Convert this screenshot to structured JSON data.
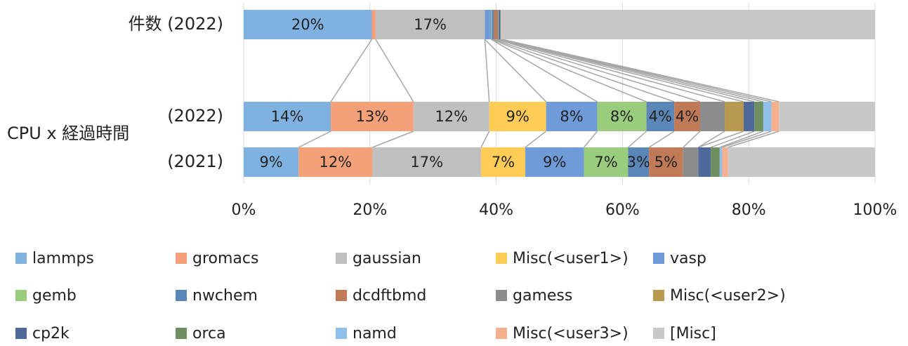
{
  "chart_data": {
    "type": "stacked_bar_horizontal",
    "categories": [
      "件数 (2022)",
      "(2022)",
      "(2021)"
    ],
    "group_label": "CPU x 経過時間",
    "xlim": [
      0,
      100
    ],
    "xticks": [
      {
        "value": 0,
        "label": "0%"
      },
      {
        "value": 20,
        "label": "20%"
      },
      {
        "value": 40,
        "label": "40%"
      },
      {
        "value": 60,
        "label": "60%"
      },
      {
        "value": 80,
        "label": "80%"
      },
      {
        "value": 100,
        "label": "100%"
      }
    ],
    "grid": true,
    "legend": "bottom",
    "series": [
      {
        "name": "lammps",
        "color": "#7fb2e0",
        "values": [
          20.3,
          13.8,
          8.7
        ],
        "value_labels": [
          "20%",
          "14%",
          "9%"
        ]
      },
      {
        "name": "gromacs",
        "color": "#f4a078",
        "values": [
          0.6,
          13.1,
          11.7
        ],
        "value_labels": [
          null,
          "13%",
          "12%"
        ]
      },
      {
        "name": "gaussian",
        "color": "#bfbfbf",
        "values": [
          17.3,
          12.0,
          17.2
        ],
        "value_labels": [
          "17%",
          "12%",
          "17%"
        ]
      },
      {
        "name": "Misc(<user1>)",
        "color": "#ffcc55",
        "values": [
          0,
          9.0,
          7.0
        ],
        "value_labels": [
          null,
          "9%",
          "7%"
        ]
      },
      {
        "name": "vasp",
        "color": "#6f9bd8",
        "values": [
          1.0,
          8.1,
          9.3
        ],
        "value_labels": [
          null,
          "8%",
          "9%"
        ]
      },
      {
        "name": "gemb",
        "color": "#9acc7d",
        "values": [
          0.1,
          7.8,
          7.0
        ],
        "value_labels": [
          null,
          "8%",
          "7%"
        ]
      },
      {
        "name": "nwchem",
        "color": "#5b86b8",
        "values": [
          0.3,
          4.4,
          3.3
        ],
        "value_labels": [
          null,
          "4%",
          "3%"
        ]
      },
      {
        "name": "dcdftbmd",
        "color": "#c07a58",
        "values": [
          0.5,
          4.1,
          5.4
        ],
        "value_labels": [
          null,
          "4%",
          "5%"
        ]
      },
      {
        "name": "gamess",
        "color": "#8c8c8c",
        "values": [
          0.2,
          3.9,
          2.4
        ],
        "value_labels": [
          null,
          null,
          null
        ]
      },
      {
        "name": "Misc(<user2>)",
        "color": "#b89a50",
        "values": [
          0.1,
          3.0,
          0
        ],
        "value_labels": [
          null,
          null,
          null
        ]
      },
      {
        "name": "cp2k",
        "color": "#4f6a9a",
        "values": [
          0.2,
          1.7,
          2.0
        ],
        "value_labels": [
          null,
          null,
          null
        ]
      },
      {
        "name": "orca",
        "color": "#6e9060",
        "values": [
          0.1,
          1.4,
          1.4
        ],
        "value_labels": [
          null,
          null,
          null
        ]
      },
      {
        "name": "namd",
        "color": "#8fc0ea",
        "values": [
          0.1,
          1.3,
          0.4
        ],
        "value_labels": [
          null,
          null,
          null
        ]
      },
      {
        "name": "Misc(<user3>)",
        "color": "#f6b08e",
        "values": [
          0.1,
          1.2,
          0.9
        ],
        "value_labels": [
          null,
          null,
          null
        ]
      },
      {
        "name": "[Misc]",
        "color": "#c8c8c8",
        "values": [
          59.1,
          15.2,
          23.3
        ],
        "value_labels": [
          null,
          null,
          null
        ]
      }
    ]
  }
}
